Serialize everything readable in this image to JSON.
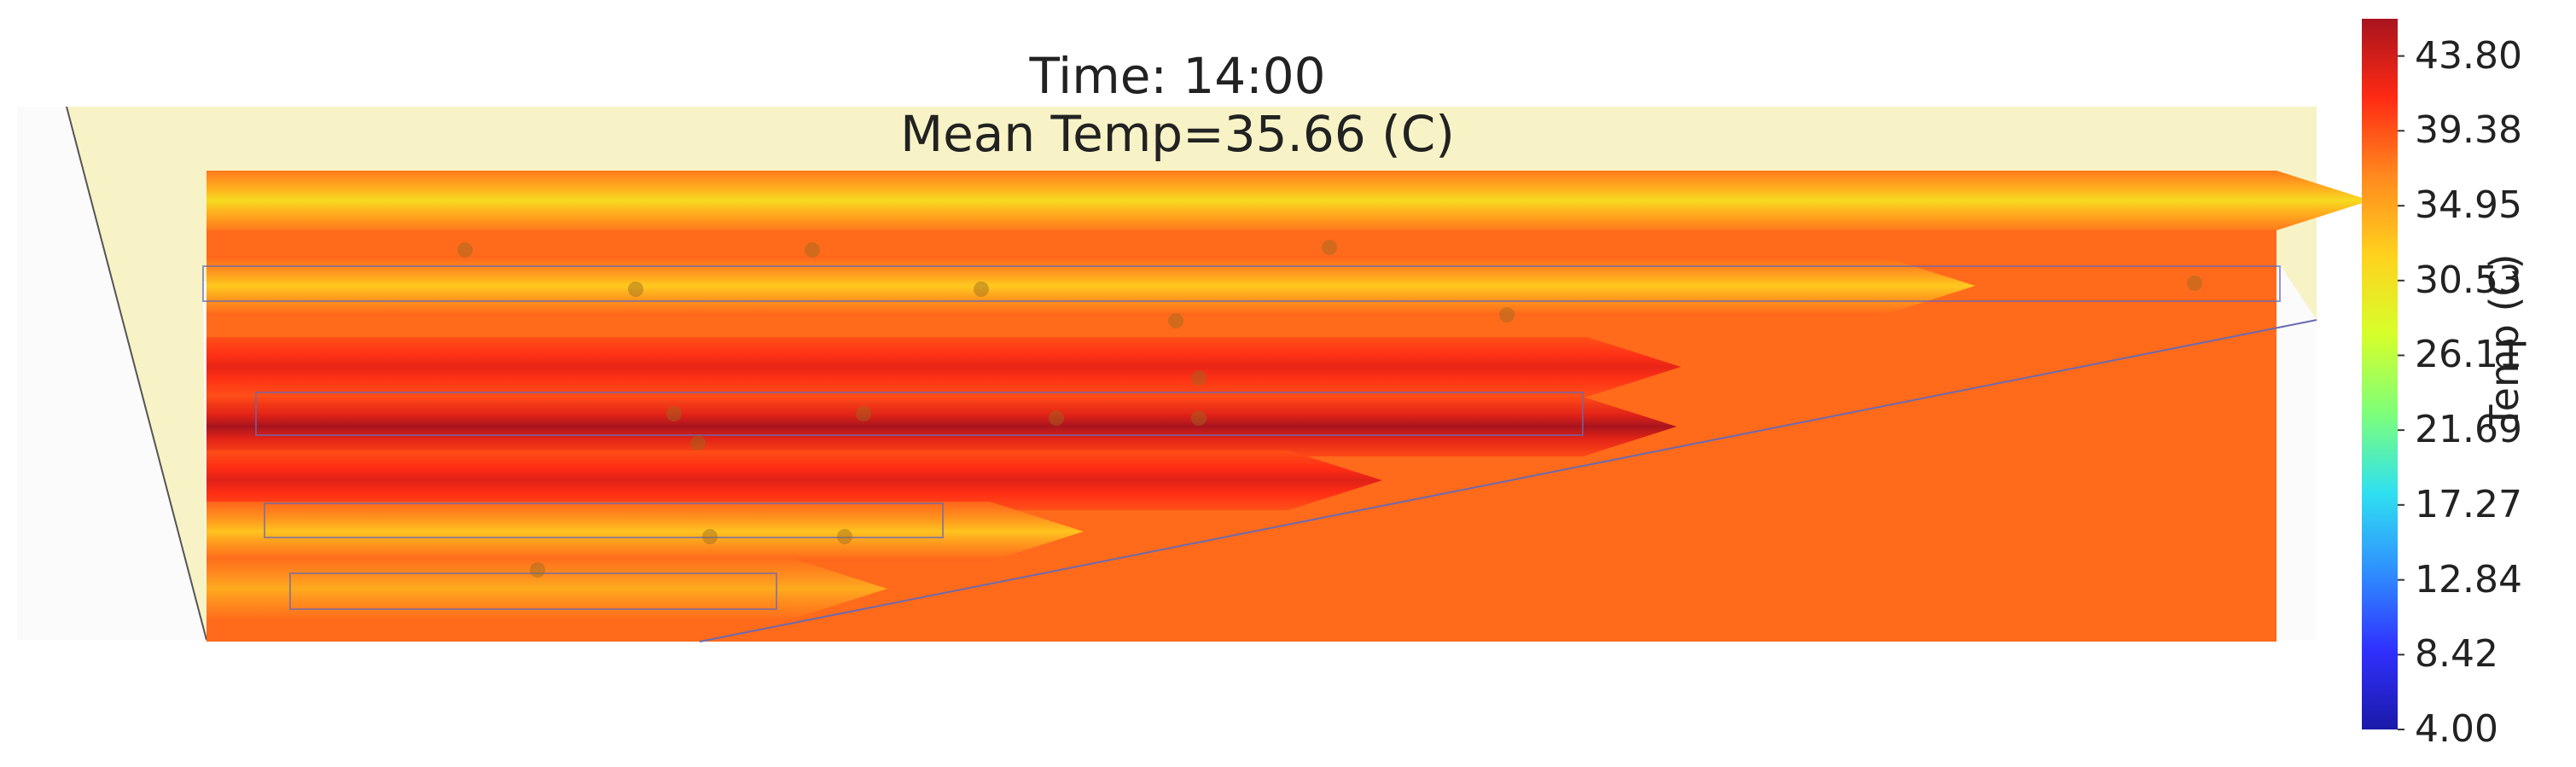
{
  "title": {
    "line1": "Time: 14:00",
    "line2": "Mean Temp=35.66 (C)"
  },
  "colorbar": {
    "label": "Temp (C)",
    "ticks": [
      "4.00",
      "8.42",
      "12.84",
      "17.27",
      "21.69",
      "26.11",
      "30.53",
      "34.95",
      "39.38",
      "43.80"
    ],
    "vmin": 4.0,
    "vmax": 46.0,
    "colormap": [
      "#1a1aa8",
      "#3030ff",
      "#2f8fff",
      "#2fe0f0",
      "#7dff7a",
      "#d6ff2a",
      "#ffd21e",
      "#ff8a1e",
      "#ff2a14",
      "#a8141e"
    ]
  },
  "colors": {
    "roof_fill": "#f7f3c6",
    "ground_fill": "#fb8d4c",
    "axes_bg": "#fbfbfb",
    "outline": "#6a6ab0"
  },
  "chart_data": {
    "type": "heatmap",
    "title": "Time: 14:00 / Mean Temp=35.66 (C)",
    "mean_temp": 35.66,
    "units": "C",
    "background_temp": 38.2,
    "colorbar_range": [
      4.0,
      46.0
    ],
    "rows": [
      {
        "edge_temp": 37.5,
        "core_temp": 31.0
      },
      {
        "edge_temp": 38.5,
        "core_temp": 32.5
      },
      {
        "edge_temp": 39.5,
        "core_temp": 42.5
      },
      {
        "edge_temp": 39.8,
        "core_temp": 46.0
      },
      {
        "edge_temp": 39.5,
        "core_temp": 43.0
      },
      {
        "edge_temp": 38.5,
        "core_temp": 33.0
      },
      {
        "edge_temp": 38.0,
        "core_temp": 34.5
      }
    ],
    "sensor_points": 17
  }
}
